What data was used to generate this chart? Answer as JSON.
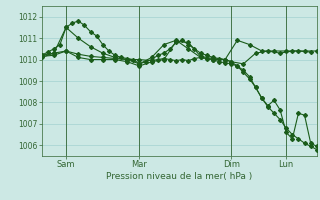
{
  "xlabel": "Pression niveau de la mer( hPa )",
  "bg_color": "#cce8e4",
  "grid_color": "#99cccc",
  "line_color": "#1a5c1a",
  "ylim": [
    1005.5,
    1012.5
  ],
  "xlim": [
    0,
    90
  ],
  "yticks": [
    1006,
    1007,
    1008,
    1009,
    1010,
    1011,
    1012
  ],
  "xtick_positions": [
    8,
    32,
    62,
    80
  ],
  "xtick_labels": [
    "Sam",
    "Mar",
    "Dim",
    "Lun"
  ],
  "vline_positions": [
    8,
    32,
    62,
    80
  ],
  "series1_x": [
    0,
    2,
    4,
    6,
    8,
    10,
    12,
    14,
    16,
    18,
    20,
    22,
    24,
    26,
    28,
    30,
    32,
    34,
    36,
    38,
    40,
    42,
    44,
    46,
    48,
    50,
    52,
    54,
    56,
    58,
    60,
    62,
    64,
    66,
    68,
    70,
    72,
    74,
    76,
    78,
    80,
    82,
    84,
    86,
    88,
    90
  ],
  "series1_y": [
    1010.2,
    1010.35,
    1010.5,
    1010.7,
    1011.5,
    1011.7,
    1011.8,
    1011.6,
    1011.3,
    1011.1,
    1010.7,
    1010.4,
    1010.2,
    1010.1,
    1010.05,
    1010.0,
    1009.8,
    1009.9,
    1010.0,
    1010.2,
    1010.3,
    1010.5,
    1010.8,
    1010.9,
    1010.7,
    1010.5,
    1010.3,
    1010.2,
    1010.1,
    1010.05,
    1010.0,
    1009.9,
    1009.7,
    1009.4,
    1009.1,
    1008.7,
    1008.2,
    1007.8,
    1007.5,
    1007.2,
    1006.8,
    1006.5,
    1006.3,
    1006.1,
    1005.95,
    1005.8
  ],
  "series2_x": [
    0,
    4,
    8,
    12,
    16,
    20,
    24,
    28,
    32,
    36,
    40,
    44,
    48,
    52,
    56,
    60,
    62,
    66,
    70,
    74,
    78,
    82,
    86,
    90
  ],
  "series2_y": [
    1010.1,
    1010.3,
    1011.5,
    1011.0,
    1010.6,
    1010.3,
    1010.1,
    1010.0,
    1009.8,
    1010.1,
    1010.7,
    1010.9,
    1010.5,
    1010.1,
    1010.0,
    1010.0,
    1009.9,
    1009.8,
    1010.3,
    1010.4,
    1010.3,
    1010.4,
    1010.4,
    1010.4
  ],
  "series3_x": [
    0,
    4,
    8,
    12,
    16,
    20,
    24,
    28,
    32,
    36,
    40,
    44,
    48,
    52,
    56,
    60,
    64,
    68,
    72,
    76,
    80,
    84,
    88
  ],
  "series3_y": [
    1010.15,
    1010.2,
    1010.4,
    1010.1,
    1010.0,
    1010.0,
    1010.0,
    1009.9,
    1009.7,
    1009.9,
    1010.0,
    1010.85,
    1010.8,
    1010.15,
    1010.05,
    1010.0,
    1010.9,
    1010.7,
    1010.4,
    1010.4,
    1010.4,
    1010.4,
    1010.35
  ],
  "series4_x": [
    0,
    4,
    8,
    12,
    16,
    20,
    24,
    28,
    32,
    36,
    38,
    40,
    42,
    44,
    46,
    48,
    50,
    52,
    54,
    56,
    58,
    60,
    62,
    64,
    66,
    68,
    70,
    72,
    74,
    76,
    78,
    80,
    82,
    84,
    86,
    88,
    90
  ],
  "series4_y": [
    1010.2,
    1010.3,
    1010.4,
    1010.25,
    1010.15,
    1010.1,
    1010.05,
    1010.0,
    1010.0,
    1009.95,
    1010.0,
    1010.05,
    1010.0,
    1009.95,
    1010.0,
    1009.95,
    1010.05,
    1010.1,
    1010.05,
    1010.0,
    1009.9,
    1009.85,
    1009.8,
    1009.7,
    1009.5,
    1009.2,
    1008.7,
    1008.2,
    1007.85,
    1008.1,
    1007.65,
    1006.6,
    1006.3,
    1007.5,
    1007.4,
    1006.1,
    1005.95
  ]
}
